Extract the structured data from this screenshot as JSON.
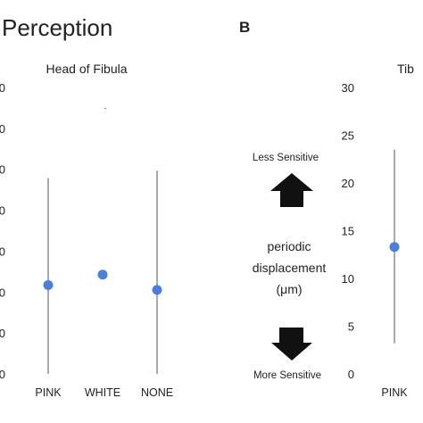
{
  "panel_title": "Perception",
  "panel_b_label": "B",
  "middle": {
    "top_label": "Less Sensitive",
    "bottom_label": "More Sensitive",
    "center_line1": "periodic",
    "center_line2": "displacement",
    "center_line3": "(μm)"
  },
  "colors": {
    "point": "#4a7fdc",
    "errorbar": "#555555",
    "arrow": "#111111"
  },
  "chart_data": [
    {
      "type": "scatter",
      "title": "Head of Fibula",
      "categories": [
        "PINK",
        "WHITE",
        "NONE"
      ],
      "values": [
        9.3,
        10.4,
        8.8
      ],
      "error_low": [
        0.0,
        null,
        0.0
      ],
      "error_high": [
        20.5,
        null,
        21.3
      ],
      "ylim": [
        0,
        30
      ],
      "yticks": [
        "0",
        "0",
        "0",
        "0",
        "0",
        "0",
        "0",
        "0"
      ],
      "grid": false,
      "legend": "none"
    },
    {
      "type": "scatter",
      "title": "Tib",
      "categories": [
        "PINK"
      ],
      "values": [
        13.3
      ],
      "error_low": [
        3.2
      ],
      "error_high": [
        23.5
      ],
      "ylim": [
        0,
        30
      ],
      "yticks": [
        "0",
        "5",
        "10",
        "15",
        "20",
        "25",
        "30"
      ],
      "grid": false,
      "legend": "none"
    }
  ]
}
